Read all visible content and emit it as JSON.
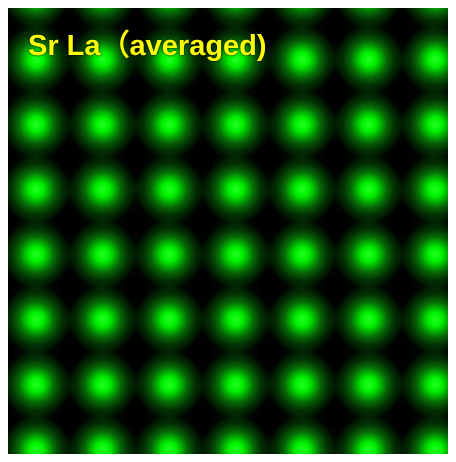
{
  "image": {
    "label": "Sr La（averaged)"
  }
}
